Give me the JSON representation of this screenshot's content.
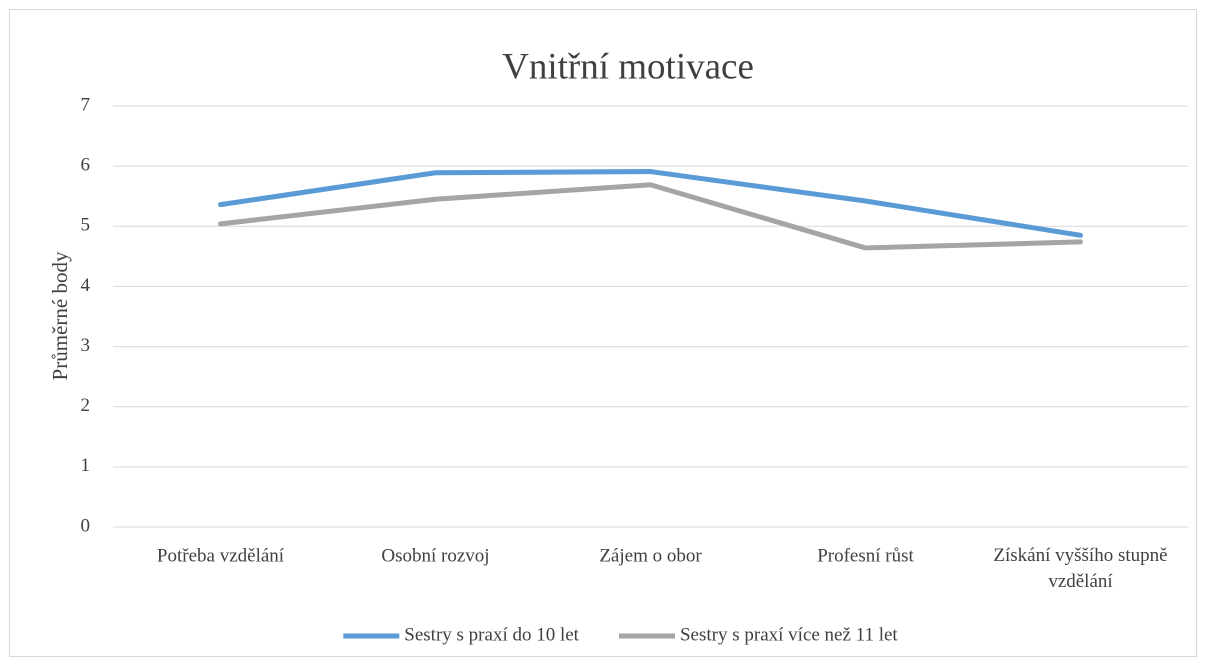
{
  "chart_data": {
    "type": "line",
    "title": "Vnitřní motivace",
    "y_label": "Průměrné body",
    "categories": [
      "Potřeba vzdělání",
      "Osobní rozvoj",
      "Zájem o obor",
      "Profesní růst",
      "Získání vyššího stupně vzdělání"
    ],
    "series": [
      {
        "name": "Sestry s praxí do 10 let",
        "color": "#5b9bd5",
        "values": [
          5.36,
          5.89,
          5.91,
          5.42,
          4.85
        ]
      },
      {
        "name": "Sestry s praxí více než 11 let",
        "color": "#a5a5a5",
        "values": [
          5.04,
          5.45,
          5.69,
          4.64,
          4.74
        ]
      }
    ],
    "ylim": [
      0,
      7
    ],
    "yticks": [
      0,
      1,
      2,
      3,
      4,
      5,
      6,
      7
    ],
    "grid": true,
    "legend": "bottom"
  }
}
